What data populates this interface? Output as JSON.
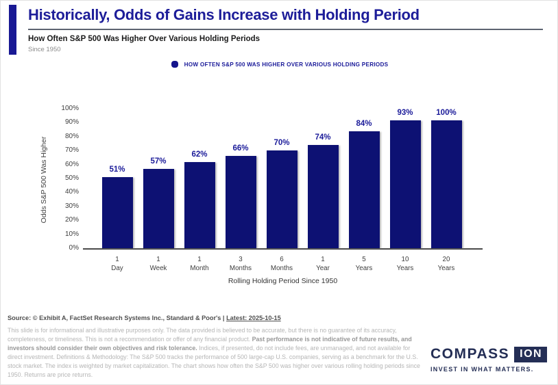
{
  "header": {
    "title": "Historically, Odds of Gains Increase with Holding Period",
    "subtitle": "How Often S&P 500 Was Higher Over Various Holding Periods",
    "period_note": "Since 1950"
  },
  "legend": {
    "label": "HOW OFTEN S&P 500 WAS HIGHER OVER VARIOUS HOLDING PERIODS",
    "marker_color": "#14148c"
  },
  "chart_data": {
    "type": "bar",
    "title": "How Often S&P 500 Was Higher Over Various Holding Periods",
    "categories": [
      "1 Day",
      "1 Week",
      "1 Month",
      "3 Months",
      "6 Months",
      "1 Year",
      "5 Years",
      "10 Years",
      "20 Years"
    ],
    "values": [
      51,
      57,
      62,
      66,
      70,
      74,
      84,
      93,
      100
    ],
    "value_labels": [
      "51%",
      "57%",
      "62%",
      "66%",
      "70%",
      "74%",
      "84%",
      "93%",
      "100%"
    ],
    "xlabel": "Rolling Holding Period Since 1950",
    "ylabel": "Odds S&P 500 Was Higher",
    "ylim": [
      0,
      100
    ],
    "yticks": [
      0,
      10,
      20,
      30,
      40,
      50,
      60,
      70,
      80,
      90,
      100
    ],
    "ytick_suffix": "%",
    "grid": false,
    "legend_position": "top-center",
    "bar_color": "#0d1173",
    "label_color": "#1a1a99"
  },
  "footer": {
    "source_prefix": "Source: © Exhibit A, FactSet Research Systems Inc., Standard & Poor's | ",
    "source_latest": "Latest: 2025-10-15",
    "disclaimer_1": "This slide is for informational and illustrative purposes only. The data provided is believed to be accurate, but there is no guarantee of its accuracy, completeness, or timeliness. This is not a recommendation or offer of any financial product. ",
    "disclaimer_bold": "Past performance is not indicative of future results, and investors should consider their own objectives and risk tolerance.",
    "disclaimer_2": " Indices, if presented, do not include fees, are unmanaged, and not available for direct investment. Definitions & Methodology: The S&P 500 tracks the performance of 500 large-cap U.S. companies, serving as a benchmark for the U.S. stock market. The index is weighted by market capitalization. The chart shows how often the S&P 500 was higher over various rolling holding periods since 1950. Returns are price returns."
  },
  "logo": {
    "name_part1": "COMPASS",
    "name_part2": "ION",
    "tagline": "INVEST IN WHAT MATTERS.",
    "color": "#242e55"
  }
}
